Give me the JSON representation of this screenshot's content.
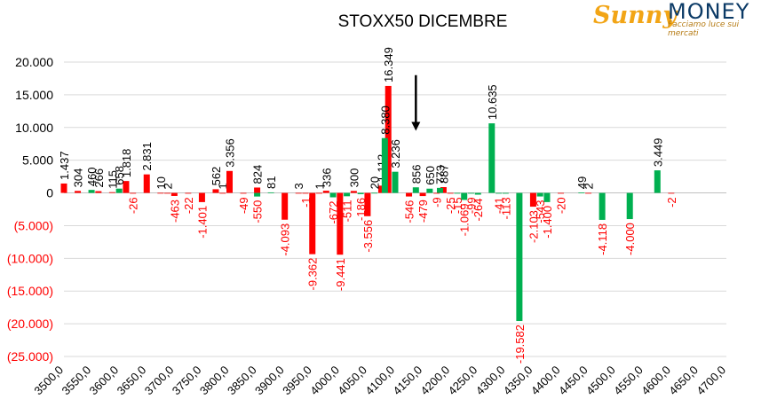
{
  "logo": {
    "word1": "Sunny",
    "word2": "MONEY",
    "tagline": "Facciamo luce sui mercati"
  },
  "colors": {
    "positive": "#00b050",
    "negative": "#ff0000",
    "negative_label": "#ff0000",
    "text": "#000000",
    "grid": "#d9d9d9"
  },
  "chart_data": {
    "type": "bar",
    "title": "STOXX50 DICEMBRE",
    "xlabel": "",
    "ylabel": "",
    "ylim": [
      -25000,
      20000
    ],
    "yticks": [
      20000,
      15000,
      10000,
      5000,
      0,
      -5000,
      -10000,
      -15000,
      -20000,
      -25000
    ],
    "ytick_labels": [
      "20.000",
      "15.000",
      "10.000",
      "5.000",
      "0",
      "(5.000)",
      "(10.000)",
      "(15.000)",
      "(20.000)",
      "(25.000)"
    ],
    "xticks": [
      3500,
      3550,
      3600,
      3650,
      3700,
      3750,
      3800,
      3850,
      3900,
      3950,
      4000,
      4050,
      4100,
      4150,
      4200,
      4250,
      4300,
      4350,
      4400,
      4450,
      4500,
      4550,
      4600,
      4650,
      4700
    ],
    "xtick_labels": [
      "3500,0",
      "3550,0",
      "3600,0",
      "3650,0",
      "3700,0",
      "3750,0",
      "3800,0",
      "3850,0",
      "3900,0",
      "3950,0",
      "4000,0",
      "4050,0",
      "4100,0",
      "4150,0",
      "4200,0",
      "4250,0",
      "4300,0",
      "4350,0",
      "4400,0",
      "4450,0",
      "4500,0",
      "4550,0",
      "4600,0",
      "4650,0",
      "4700,0"
    ],
    "grid": true,
    "annotation": {
      "type": "arrow-down",
      "x": 4137.5,
      "from_y": 18000,
      "to_y": 9500
    },
    "series": [
      {
        "color": "red",
        "points": [
          {
            "x": 3500,
            "y": 1437,
            "label": "1.437"
          },
          {
            "x": 3525,
            "y": 304,
            "label": "304"
          },
          {
            "x": 3562.5,
            "y": 266,
            "label": "266"
          },
          {
            "x": 3587.5,
            "y": 115,
            "label": "115"
          },
          {
            "x": 3612.5,
            "y": 1818,
            "label": "1.818"
          },
          {
            "x": 3625,
            "y": -26,
            "label": "-26"
          },
          {
            "x": 3650,
            "y": 2831,
            "label": "2.831"
          },
          {
            "x": 3675,
            "y": 10,
            "label": "10"
          },
          {
            "x": 3687.5,
            "y": 2,
            "label": "2"
          },
          {
            "x": 3700,
            "y": -463,
            "label": "-463"
          },
          {
            "x": 3725,
            "y": -22,
            "label": "-22"
          },
          {
            "x": 3750,
            "y": -1401,
            "label": "-1.401"
          },
          {
            "x": 3775,
            "y": 562,
            "label": "562"
          },
          {
            "x": 3787.5,
            "y": 1,
            "label": "1"
          },
          {
            "x": 3800,
            "y": 3356,
            "label": "3.356"
          },
          {
            "x": 3825,
            "y": -49,
            "label": "-49"
          },
          {
            "x": 3850,
            "y": 824,
            "label": "824"
          },
          {
            "x": 3900,
            "y": -4093,
            "label": "-4.093"
          },
          {
            "x": 3925,
            "y": 3,
            "label": "3"
          },
          {
            "x": 3937.5,
            "y": -1,
            "label": "-1"
          },
          {
            "x": 3950,
            "y": -9362,
            "label": "-9.362"
          },
          {
            "x": 3962.5,
            "y": 1,
            "label": "1"
          },
          {
            "x": 3975,
            "y": 336,
            "label": "336"
          },
          {
            "x": 4000,
            "y": -9441,
            "label": "-9.441"
          },
          {
            "x": 4025,
            "y": 300,
            "label": "300"
          },
          {
            "x": 4050,
            "y": -3556,
            "label": "-3.556"
          },
          {
            "x": 4075,
            "y": 1112,
            "label": "1.112"
          },
          {
            "x": 4087.5,
            "y": 16349,
            "label": "16.349"
          },
          {
            "x": 4125,
            "y": -546,
            "label": "-546"
          },
          {
            "x": 4150,
            "y": -479,
            "label": "-479"
          },
          {
            "x": 4175,
            "y": -9,
            "label": "-9"
          },
          {
            "x": 4187.5,
            "y": 887,
            "label": "887"
          },
          {
            "x": 4200,
            "y": -25,
            "label": "-25"
          },
          {
            "x": 4350,
            "y": -2103,
            "label": "-2.103"
          },
          {
            "x": 4400,
            "y": -20,
            "label": "-20"
          },
          {
            "x": 4450,
            "y": 2,
            "label": "2"
          },
          {
            "x": 4600,
            "y": -2,
            "label": "-2"
          }
        ]
      },
      {
        "color": "green",
        "points": [
          {
            "x": 3550,
            "y": 460,
            "label": "460"
          },
          {
            "x": 3600,
            "y": 658,
            "label": "658"
          },
          {
            "x": 3850,
            "y": -550,
            "label": "-550"
          },
          {
            "x": 3875,
            "y": 81,
            "label": "81"
          },
          {
            "x": 3987.5,
            "y": -672,
            "label": "-672"
          },
          {
            "x": 4012.5,
            "y": -511,
            "label": "-511"
          },
          {
            "x": 4037.5,
            "y": -186,
            "label": "-186"
          },
          {
            "x": 4062.5,
            "y": 20,
            "label": "20"
          },
          {
            "x": 4081.25,
            "y": 8380,
            "label": "8.380"
          },
          {
            "x": 4100,
            "y": 3236,
            "label": "3.236"
          },
          {
            "x": 4137.5,
            "y": 856,
            "label": "856"
          },
          {
            "x": 4162.5,
            "y": 650,
            "label": "650"
          },
          {
            "x": 4181.25,
            "y": 773,
            "label": "773"
          },
          {
            "x": 4212.5,
            "y": -15,
            "label": "-15"
          },
          {
            "x": 4225,
            "y": -1069,
            "label": "-1.069"
          },
          {
            "x": 4237.5,
            "y": -99,
            "label": "-99"
          },
          {
            "x": 4250,
            "y": -264,
            "label": "-264"
          },
          {
            "x": 4275,
            "y": 10635,
            "label": "10.635"
          },
          {
            "x": 4287.5,
            "y": -41,
            "label": "-41"
          },
          {
            "x": 4300,
            "y": -113,
            "label": "-113"
          },
          {
            "x": 4325,
            "y": -19582,
            "label": "-19.582"
          },
          {
            "x": 4362.5,
            "y": -543,
            "label": "-543"
          },
          {
            "x": 4375,
            "y": -1400,
            "label": "-1.400"
          },
          {
            "x": 4437.5,
            "y": 49,
            "label": "49"
          },
          {
            "x": 4475,
            "y": -4118,
            "label": "-4.118"
          },
          {
            "x": 4525,
            "y": -4000,
            "label": "-4.000"
          },
          {
            "x": 4575,
            "y": 3449,
            "label": "3.449"
          }
        ]
      }
    ]
  }
}
